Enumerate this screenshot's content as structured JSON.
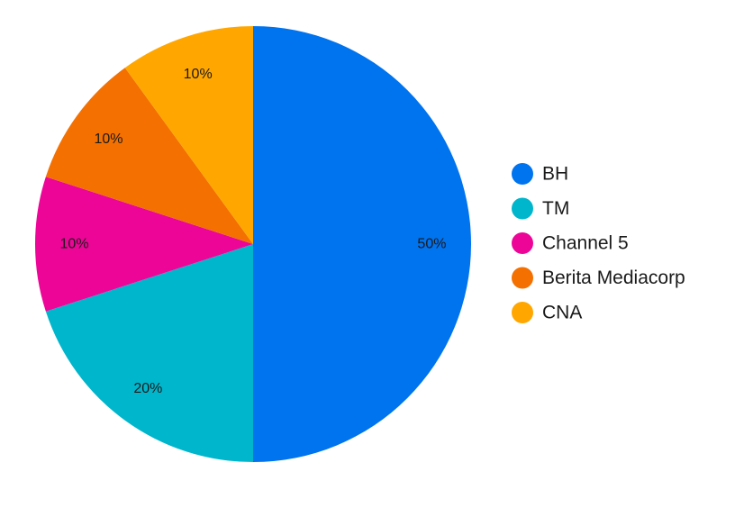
{
  "chart_data": {
    "type": "pie",
    "slices": [
      {
        "label": "BH",
        "value": 50,
        "display": "50%",
        "color": "#0073ef"
      },
      {
        "label": "TM",
        "value": 20,
        "display": "20%",
        "color": "#00b6cc"
      },
      {
        "label": "Channel 5",
        "value": 10,
        "display": "10%",
        "color": "#ed0598"
      },
      {
        "label": "Berita Mediacorp",
        "value": 10,
        "display": "10%",
        "color": "#f47000"
      },
      {
        "label": "CNA",
        "value": 10,
        "display": "10%",
        "color": "#ffa700"
      }
    ],
    "legend_position": "right",
    "start_angle": "12 o'clock",
    "direction": "clockwise"
  }
}
